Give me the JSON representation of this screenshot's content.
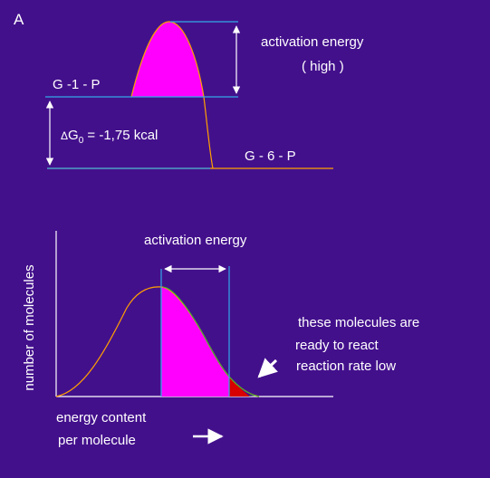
{
  "panel_label": "A",
  "top_diagram": {
    "activation_energy_label": "activation energy",
    "activation_energy_qualifier": "( high )",
    "initial_state_label": "G -1 - P",
    "final_state_label": "G - 6 - P",
    "delta_symbol": "Δ",
    "delta_g_symbol": "G",
    "delta_g_subscript": "0",
    "delta_g_value": "= -1,75 kcal"
  },
  "bottom_diagram": {
    "activation_energy_label": "activation energy",
    "y_axis_label": "number of molecules",
    "x_axis_label_line1": "energy content",
    "x_axis_label_line2": "per molecule",
    "annotation_line1": "these molecules are",
    "annotation_line2": "ready to react",
    "annotation_line3": "reaction rate low"
  },
  "colors": {
    "background": "#43108c",
    "energy_curve": "#ffa000",
    "reference_lines": "#32a8e6",
    "activation_fill": "#ff00ff",
    "reacting_fill": "#d80000",
    "tail_fill": "#2eb82e",
    "text": "#ffffff"
  }
}
